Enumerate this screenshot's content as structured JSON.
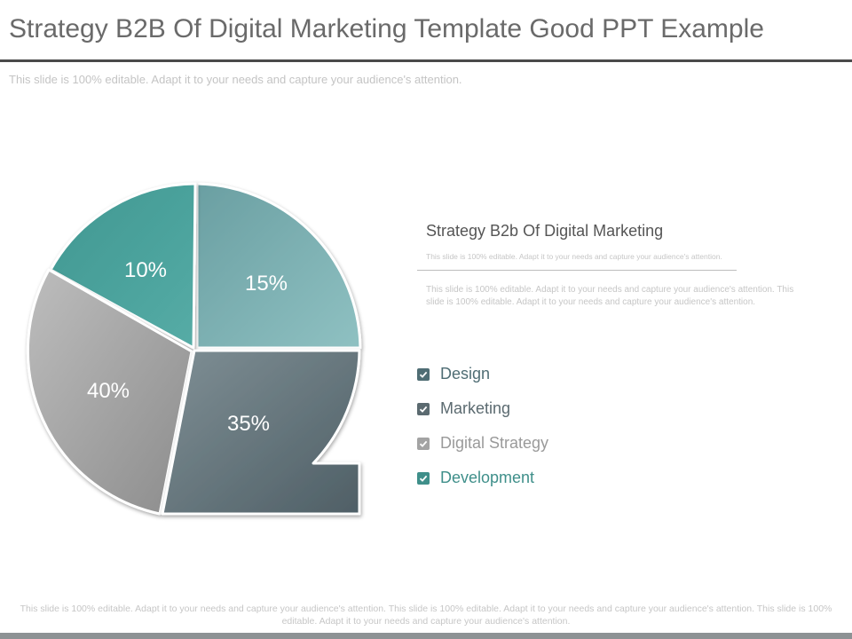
{
  "header": {
    "title": "Strategy B2B Of Digital Marketing Template Good PPT Example",
    "subtitle": "This slide is 100% editable. Adapt it to your needs and capture your audience's attention."
  },
  "info": {
    "heading": "Strategy B2b Of Digital Marketing",
    "tagline": "This slide is 100% editable. Adapt it to your needs and capture your audience's attention.",
    "body": "This slide is 100% editable. Adapt it to your needs and capture your audience's attention. This slide is 100% editable. Adapt it to your needs and capture your audience's attention."
  },
  "footer": {
    "text": "This slide is 100% editable. Adapt it to your needs and capture your audience's attention. This slide is 100% editable. Adapt it to your needs and capture your audience's attention. This slide is 100% editable. Adapt it to your needs and capture your audience's attention."
  },
  "chart_data": {
    "type": "pie",
    "title": "",
    "slices": [
      {
        "label": "10%",
        "value": 10,
        "color": "#4a9e98"
      },
      {
        "label": "15%",
        "value": 15,
        "color": "#7fb0b2"
      },
      {
        "label": "35%",
        "value": 35,
        "color": "#6f8087"
      },
      {
        "label": "40%",
        "value": 40,
        "color": "#a3a3a3"
      }
    ]
  },
  "legend": [
    {
      "label": "Design",
      "text_color": "#4f6d74",
      "check_color": "#4f6d74"
    },
    {
      "label": "Marketing",
      "text_color": "#5b6a70",
      "check_color": "#5b6a70"
    },
    {
      "label": "Digital Strategy",
      "text_color": "#9a9a9a",
      "check_color": "#a3a3a3"
    },
    {
      "label": "Development",
      "text_color": "#3f8f8a",
      "check_color": "#3f8f8a"
    }
  ]
}
